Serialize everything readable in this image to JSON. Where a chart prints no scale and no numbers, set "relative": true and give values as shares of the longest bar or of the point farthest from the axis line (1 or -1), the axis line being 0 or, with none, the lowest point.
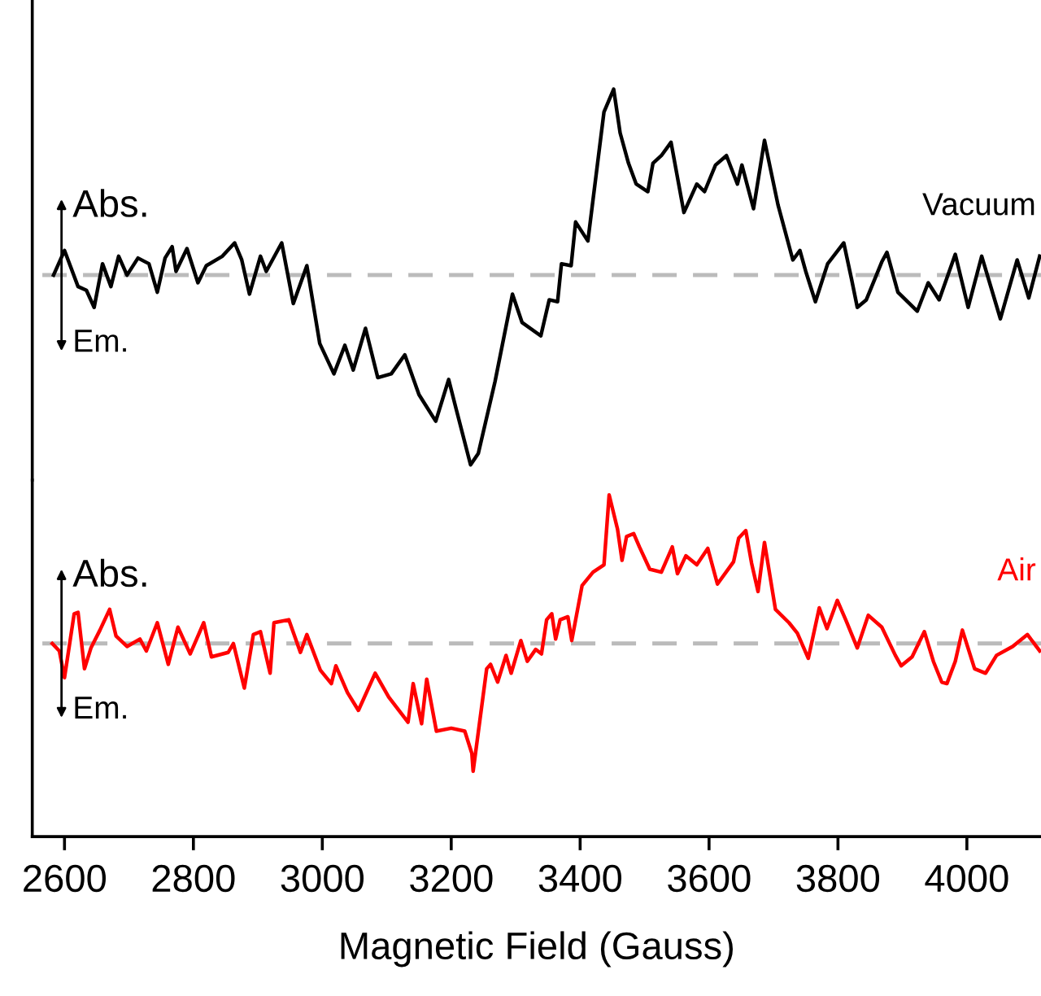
{
  "chart_data": [
    {
      "type": "line",
      "relative": true,
      "tick_labels": false,
      "xlim": [
        2550,
        4115
      ],
      "ref_lines": [
        {
          "axis": "y",
          "value": 0,
          "color": "#bbbbbb",
          "line_style": "dashed"
        }
      ],
      "annotations": [
        "Abs.",
        "Em."
      ],
      "series": [
        {
          "name": "Vacuum",
          "color": "#000000",
          "x": [
            2583,
            2600,
            2621,
            2634,
            2646,
            2659,
            2672,
            2684,
            2697,
            2714,
            2731,
            2744,
            2756,
            2767,
            2773,
            2790,
            2807,
            2820,
            2845,
            2864,
            2875,
            2887,
            2904,
            2913,
            2937,
            2955,
            2976,
            2996,
            3018,
            3035,
            3048,
            3067,
            3086,
            3107,
            3128,
            3150,
            3176,
            3196,
            3208,
            3230,
            3242,
            3268,
            3295,
            3310,
            3339,
            3352,
            3365,
            3371,
            3386,
            3393,
            3412,
            3437,
            3452,
            3462,
            3475,
            3487,
            3505,
            3513,
            3526,
            3541,
            3561,
            3581,
            3593,
            3610,
            3627,
            3644,
            3651,
            3669,
            3686,
            3707,
            3730,
            3741,
            3750,
            3765,
            3784,
            3809,
            3821,
            3830,
            3844,
            3868,
            3876,
            3893,
            3923,
            3940,
            3957,
            3982,
            4002,
            4023,
            4052,
            4078,
            4096,
            4113
          ],
          "values": [
            0.0,
            0.13,
            -0.06,
            -0.08,
            -0.17,
            0.06,
            -0.06,
            0.1,
            0.0,
            0.09,
            0.06,
            -0.09,
            0.09,
            0.15,
            0.02,
            0.14,
            -0.04,
            0.05,
            0.1,
            0.17,
            0.08,
            -0.1,
            0.1,
            0.02,
            0.17,
            -0.15,
            0.05,
            -0.36,
            -0.52,
            -0.37,
            -0.5,
            -0.28,
            -0.54,
            -0.52,
            -0.42,
            -0.63,
            -0.77,
            -0.55,
            -0.71,
            -1.0,
            -0.94,
            -0.56,
            -0.1,
            -0.25,
            -0.32,
            -0.13,
            -0.14,
            0.06,
            0.05,
            0.28,
            0.18,
            0.86,
            0.98,
            0.75,
            0.59,
            0.48,
            0.44,
            0.59,
            0.63,
            0.7,
            0.33,
            0.48,
            0.44,
            0.58,
            0.63,
            0.48,
            0.58,
            0.35,
            0.71,
            0.37,
            0.08,
            0.13,
            0.02,
            -0.14,
            0.06,
            0.17,
            -0.02,
            -0.17,
            -0.13,
            0.07,
            0.12,
            -0.09,
            -0.19,
            -0.04,
            -0.13,
            0.11,
            -0.17,
            0.1,
            -0.23,
            0.08,
            -0.12,
            0.1
          ]
        }
      ]
    },
    {
      "type": "line",
      "relative": true,
      "tick_labels": "x",
      "xlim": [
        2550,
        4115
      ],
      "xticks": [
        2600,
        2800,
        3000,
        3200,
        3400,
        3600,
        3800,
        4000
      ],
      "xlabel": "Magnetic Field (Gauss)",
      "ref_lines": [
        {
          "axis": "y",
          "value": 0,
          "color": "#bbbbbb",
          "line_style": "dashed"
        }
      ],
      "annotations": [
        "Abs.",
        "Em."
      ],
      "series": [
        {
          "name": "Air",
          "color": "#ff0000",
          "x": [
            2581,
            2592,
            2600,
            2615,
            2621,
            2631,
            2641,
            2655,
            2670,
            2680,
            2697,
            2717,
            2727,
            2744,
            2761,
            2776,
            2795,
            2816,
            2828,
            2854,
            2862,
            2879,
            2893,
            2904,
            2919,
            2925,
            2948,
            2966,
            2976,
            2997,
            3014,
            3021,
            3039,
            3056,
            3082,
            3103,
            3133,
            3141,
            3154,
            3162,
            3177,
            3200,
            3221,
            3232,
            3234,
            3255,
            3261,
            3272,
            3285,
            3293,
            3308,
            3318,
            3331,
            3340,
            3348,
            3356,
            3362,
            3369,
            3381,
            3387,
            3403,
            3420,
            3437,
            3445,
            3458,
            3465,
            3472,
            3483,
            3492,
            3508,
            3526,
            3543,
            3551,
            3564,
            3581,
            3598,
            3613,
            3638,
            3646,
            3657,
            3666,
            3676,
            3686,
            3703,
            3724,
            3737,
            3754,
            3771,
            3783,
            3799,
            3812,
            3830,
            3847,
            3868,
            3889,
            3898,
            3915,
            3934,
            3948,
            3961,
            3969,
            3982,
            3993,
            4012,
            4029,
            4046,
            4071,
            4094,
            4113
          ],
          "values": [
            0.0,
            -0.05,
            -0.23,
            0.2,
            0.21,
            -0.17,
            -0.03,
            0.09,
            0.23,
            0.05,
            -0.02,
            0.03,
            -0.05,
            0.14,
            -0.14,
            0.11,
            -0.07,
            0.14,
            -0.09,
            -0.06,
            0.0,
            -0.3,
            0.06,
            0.08,
            -0.2,
            0.14,
            0.16,
            -0.06,
            0.06,
            -0.18,
            -0.27,
            -0.15,
            -0.33,
            -0.45,
            -0.2,
            -0.36,
            -0.53,
            -0.27,
            -0.54,
            -0.24,
            -0.59,
            -0.57,
            -0.59,
            -0.74,
            -0.86,
            -0.17,
            -0.14,
            -0.26,
            -0.08,
            -0.2,
            0.02,
            -0.12,
            -0.04,
            -0.07,
            0.16,
            0.2,
            0.03,
            0.16,
            0.18,
            0.02,
            0.39,
            0.48,
            0.53,
            1.0,
            0.77,
            0.56,
            0.72,
            0.74,
            0.65,
            0.5,
            0.48,
            0.65,
            0.47,
            0.59,
            0.53,
            0.64,
            0.4,
            0.55,
            0.71,
            0.76,
            0.54,
            0.35,
            0.68,
            0.23,
            0.14,
            0.07,
            -0.1,
            0.24,
            0.1,
            0.29,
            0.16,
            -0.03,
            0.19,
            0.11,
            -0.08,
            -0.15,
            -0.09,
            0.08,
            -0.12,
            -0.26,
            -0.27,
            -0.12,
            0.09,
            -0.17,
            -0.2,
            -0.08,
            -0.02,
            0.06,
            -0.05
          ]
        }
      ]
    }
  ]
}
